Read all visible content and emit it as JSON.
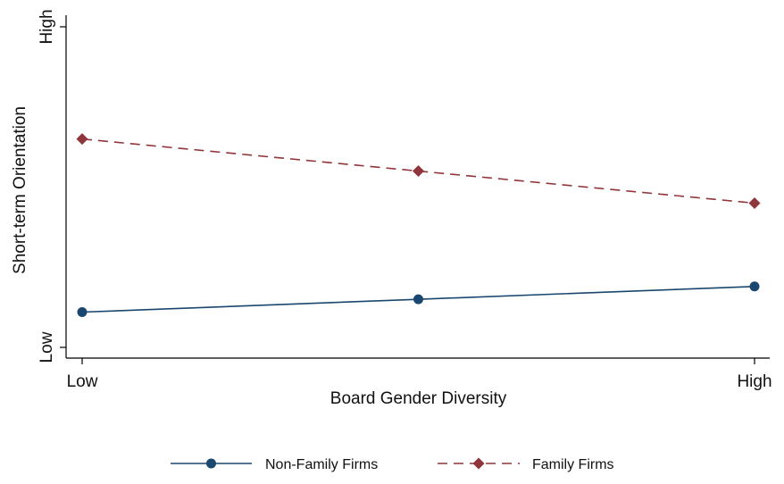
{
  "chart_data": {
    "type": "line",
    "xlabel": "Board Gender Diversity",
    "ylabel": "Short-term Orientation",
    "x": [
      0,
      0.5,
      1
    ],
    "xlim": [
      0,
      1
    ],
    "ylim": [
      0,
      1
    ],
    "x_ticks": [
      {
        "value": 0,
        "label": "Low"
      },
      {
        "value": 1,
        "label": "High"
      }
    ],
    "y_ticks": [
      {
        "value": 0,
        "label": "Low"
      },
      {
        "value": 1,
        "label": "High"
      }
    ],
    "grid": false,
    "legend_position": "bottom",
    "series": [
      {
        "name": "Non-Family Firms",
        "values": [
          0.11,
          0.15,
          0.19
        ],
        "color": "#1a476f",
        "line_style": "solid",
        "marker": "circle"
      },
      {
        "name": "Family Firms",
        "values": [
          0.65,
          0.55,
          0.45
        ],
        "color": "#90353b",
        "line_style": "dashed",
        "marker": "diamond"
      }
    ]
  }
}
